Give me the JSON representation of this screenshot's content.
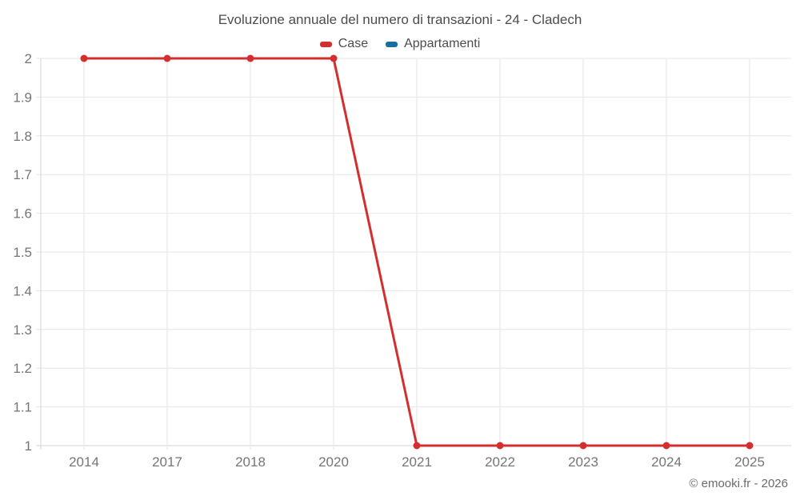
{
  "chart_data": {
    "type": "line",
    "title": "Evoluzione annuale del numero di transazioni - 24 - Cladech",
    "categories": [
      "2014",
      "2017",
      "2018",
      "2020",
      "2021",
      "2022",
      "2023",
      "2024",
      "2025"
    ],
    "series": [
      {
        "name": "Case",
        "color": "#d32f2f",
        "values": [
          2,
          2,
          2,
          2,
          1,
          1,
          1,
          1,
          1
        ]
      },
      {
        "name": "Appartamenti",
        "color": "#176ea0",
        "values": []
      }
    ],
    "xlabel": "",
    "ylabel": "",
    "ylim": [
      1,
      2
    ],
    "y_ticks": [
      {
        "value": 2,
        "label": "2"
      },
      {
        "value": 1.9,
        "label": "1.9"
      },
      {
        "value": 1.8,
        "label": "1.8"
      },
      {
        "value": 1.7,
        "label": "1.7"
      },
      {
        "value": 1.6,
        "label": "1.6"
      },
      {
        "value": 1.5,
        "label": "1.5"
      },
      {
        "value": 1.4,
        "label": "1.4"
      },
      {
        "value": 1.3,
        "label": "1.3"
      },
      {
        "value": 1.2,
        "label": "1.2"
      },
      {
        "value": 1.1,
        "label": "1.1"
      },
      {
        "value": 1,
        "label": "1"
      }
    ],
    "grid": true,
    "legend_position": "top"
  },
  "palette": {
    "background": "#ffffff",
    "grid_line": "#e6e6e6",
    "axis_line": "#d4d4d4",
    "title_text": "#4c4c4c",
    "tick_text": "#757575",
    "credit_text": "#6b6b6b"
  },
  "footer": {
    "credit": "© emooki.fr - 2026"
  }
}
